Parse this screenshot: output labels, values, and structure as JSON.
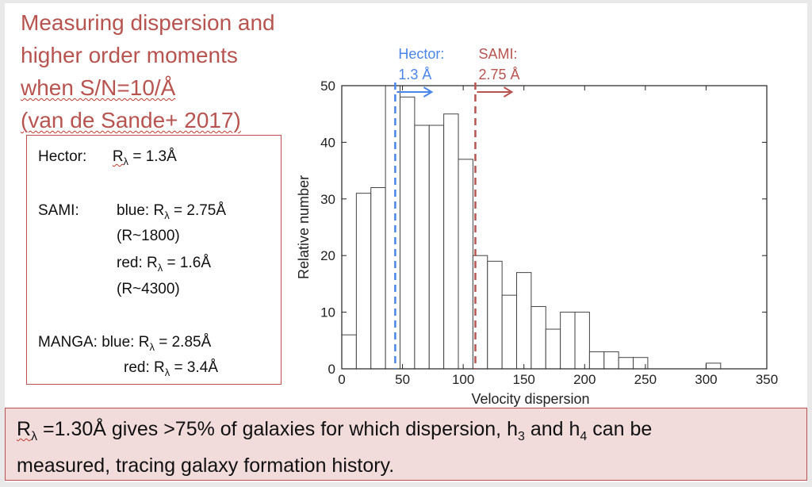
{
  "title_lines": [
    "Measuring dispersion and",
    "higher order moments",
    "when S/N=10/Å",
    "(van de Sande+ 2017)"
  ],
  "infobox": {
    "hector_label": "Hector:",
    "hector_r": "= 1.3Å",
    "sami_label": "SAMI:",
    "sami_blue_prefix": "blue:",
    "sami_blue_r": "= 2.75Å",
    "sami_blue_res": "(R~1800)",
    "sami_red_prefix": "red:",
    "sami_red_r": "= 1.6Å",
    "sami_red_res": "(R~4300)",
    "manga_label": "MANGA:",
    "manga_blue_prefix": "blue:",
    "manga_blue_r": "= 2.85Å",
    "manga_red_prefix": "red:",
    "manga_red_r": "= 3.4Å",
    "r_symbol": "R",
    "lambda_symbol": "λ"
  },
  "footer": {
    "r_symbol": "R",
    "lambda_symbol": "λ",
    "part1": " =1.30Å gives >75% of galaxies for which dispersion, h",
    "sub3": "3",
    "part2": " and h",
    "sub4": "4",
    "part3": " can be",
    "line2": "measured, tracing galaxy formation history."
  },
  "chart_data": {
    "type": "bar",
    "xlabel": "Velocity dispersion",
    "ylabel": "Relative number",
    "xlim": [
      0,
      350
    ],
    "ylim": [
      0,
      50
    ],
    "xticks": [
      0,
      50,
      100,
      150,
      200,
      250,
      300,
      350
    ],
    "yticks": [
      0,
      10,
      20,
      30,
      40,
      50
    ],
    "bin_width": 12,
    "bins": [
      {
        "x0": 0,
        "value": 6
      },
      {
        "x0": 12,
        "value": 31
      },
      {
        "x0": 24,
        "value": 32
      },
      {
        "x0": 36,
        "value": 50
      },
      {
        "x0": 48,
        "value": 48
      },
      {
        "x0": 60,
        "value": 43
      },
      {
        "x0": 72,
        "value": 43
      },
      {
        "x0": 84,
        "value": 45
      },
      {
        "x0": 96,
        "value": 37
      },
      {
        "x0": 108,
        "value": 20
      },
      {
        "x0": 120,
        "value": 19
      },
      {
        "x0": 132,
        "value": 13
      },
      {
        "x0": 144,
        "value": 17
      },
      {
        "x0": 156,
        "value": 11
      },
      {
        "x0": 168,
        "value": 7
      },
      {
        "x0": 180,
        "value": 10
      },
      {
        "x0": 192,
        "value": 10
      },
      {
        "x0": 204,
        "value": 3
      },
      {
        "x0": 216,
        "value": 3
      },
      {
        "x0": 228,
        "value": 2
      },
      {
        "x0": 240,
        "value": 2
      },
      {
        "x0": 300,
        "value": 1
      }
    ],
    "markers": [
      {
        "name": "Hector",
        "label_line1": "Hector:",
        "label_line2": "1.3 Å",
        "x": 44,
        "color": "#4a86e8"
      },
      {
        "name": "SAMI",
        "label_line1": "SAMI:",
        "label_line2": "2.75 Å",
        "x": 110,
        "color": "#b85450"
      }
    ]
  }
}
